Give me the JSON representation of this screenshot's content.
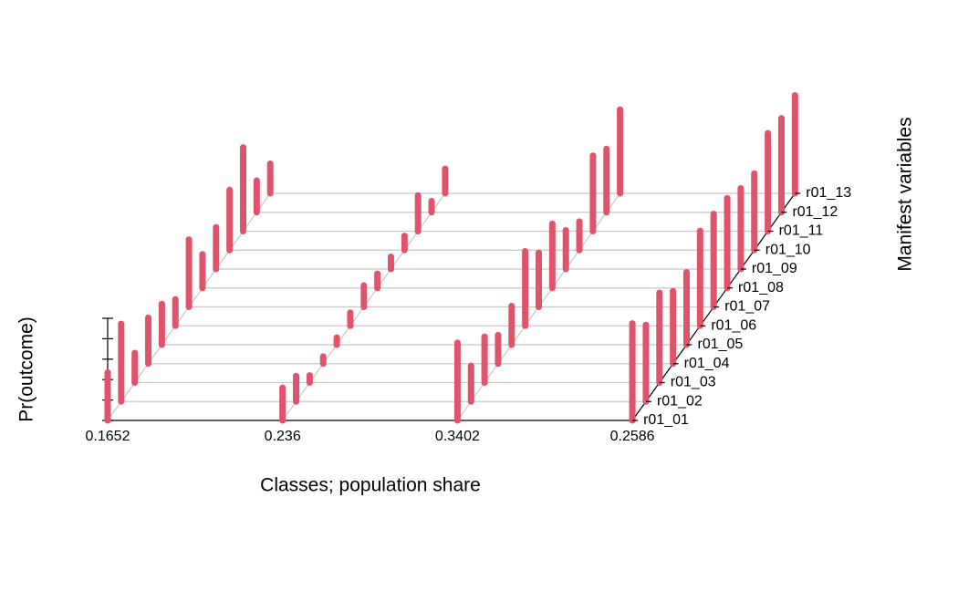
{
  "chart_data": {
    "type": "bar3d",
    "x_label": "Classes; population share",
    "y_label": "Pr(outcome)",
    "z_label": "Manifest variables",
    "categories": [
      "0.1652",
      "0.236",
      "0.3402",
      "0.2586"
    ],
    "variables": [
      "r01_01",
      "r01_02",
      "r01_03",
      "r01_04",
      "r01_05",
      "r01_06",
      "r01_07",
      "r01_08",
      "r01_09",
      "r01_10",
      "r01_11",
      "r01_12",
      "r01_13"
    ],
    "values": [
      [
        0.47,
        0.76,
        0.29,
        0.45,
        0.4,
        0.26,
        0.66,
        0.33,
        0.41,
        0.59,
        0.82,
        0.31,
        0.29
      ],
      [
        0.32,
        0.25,
        0.07,
        0.07,
        0.07,
        0.13,
        0.21,
        0.14,
        0.12,
        0.14,
        0.35,
        0.11,
        0.24
      ],
      [
        0.76,
        0.35,
        0.45,
        0.28,
        0.38,
        0.73,
        0.53,
        0.63,
        0.38,
        0.28,
        0.74,
        0.62,
        0.82
      ],
      [
        0.95,
        0.75,
        0.88,
        0.71,
        0.71,
        0.93,
        0.91,
        0.88,
        0.79,
        0.75,
        0.96,
        0.92,
        0.96
      ]
    ],
    "color": "#df536b",
    "ylim": [
      0,
      1
    ],
    "yticks": [
      0,
      0.2,
      0.4,
      0.6,
      0.8,
      1
    ]
  }
}
